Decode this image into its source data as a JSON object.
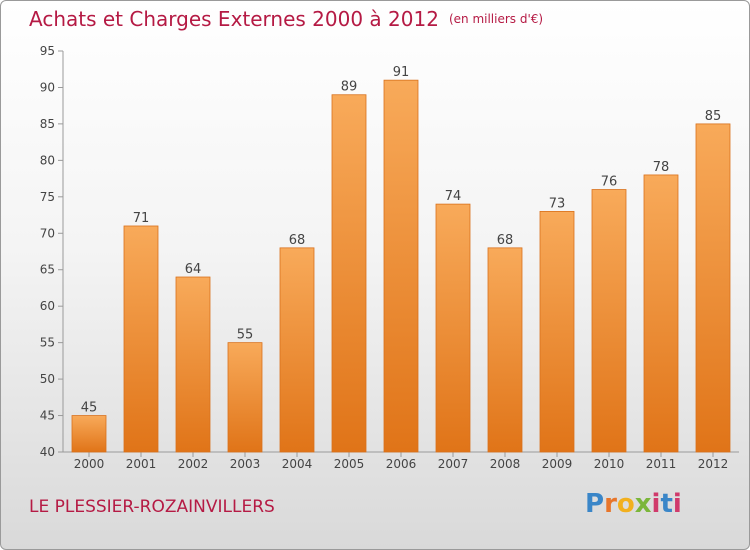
{
  "title": "Achats et Charges Externes 2000 à 2012",
  "unit": "(en milliers d'€)",
  "location": "LE PLESSIER-ROZAINVILLERS",
  "logo": {
    "p": "P",
    "r": "r",
    "o": "o",
    "x": "x",
    "i": "i",
    "t": "t",
    "i2": "i"
  },
  "colors": {
    "title": "#b51a44",
    "bar_top": "#f8aa5a",
    "bar_bottom": "#e07418",
    "bar_edge": "#d9711c"
  },
  "chart_data": {
    "type": "bar",
    "categories": [
      "2000",
      "2001",
      "2002",
      "2003",
      "2004",
      "2005",
      "2006",
      "2007",
      "2008",
      "2009",
      "2010",
      "2011",
      "2012"
    ],
    "values": [
      45,
      71,
      64,
      55,
      68,
      89,
      91,
      74,
      68,
      73,
      76,
      78,
      85
    ],
    "ylim": [
      40,
      95
    ],
    "yticks": [
      40,
      45,
      50,
      55,
      60,
      65,
      70,
      75,
      80,
      85,
      90,
      95
    ],
    "grid": false,
    "data_labels": true
  }
}
